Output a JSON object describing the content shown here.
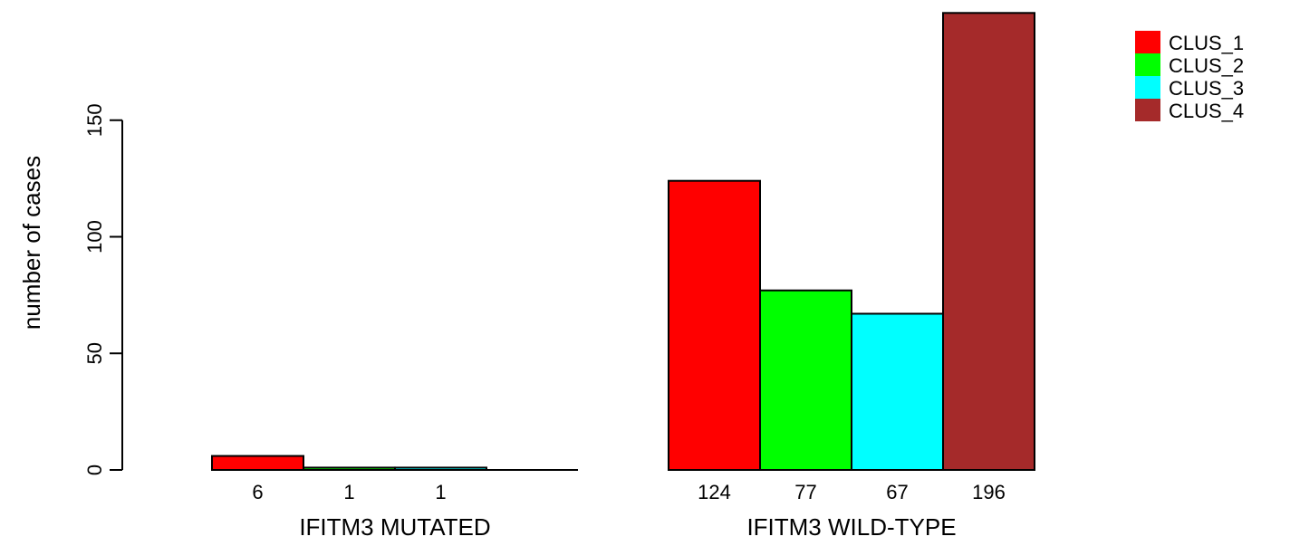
{
  "chart_data": {
    "type": "bar",
    "ylabel": "number of cases",
    "ylim": [
      0,
      200
    ],
    "yticks": [
      0,
      50,
      100,
      150
    ],
    "grid": false,
    "legend_position": "top-right",
    "groups": [
      {
        "label": "IFITM3 MUTATED",
        "bars": [
          {
            "series": "CLUS_1",
            "value": 6,
            "label": "6"
          },
          {
            "series": "CLUS_2",
            "value": 1,
            "label": "1"
          },
          {
            "series": "CLUS_3",
            "value": 1,
            "label": "1"
          },
          {
            "series": "CLUS_4",
            "value": 0,
            "label": ""
          }
        ]
      },
      {
        "label": "IFITM3 WILD-TYPE",
        "bars": [
          {
            "series": "CLUS_1",
            "value": 124,
            "label": "124"
          },
          {
            "series": "CLUS_2",
            "value": 77,
            "label": "77"
          },
          {
            "series": "CLUS_3",
            "value": 67,
            "label": "67"
          },
          {
            "series": "CLUS_4",
            "value": 196,
            "label": "196"
          }
        ]
      }
    ],
    "series": [
      {
        "name": "CLUS_1",
        "color": "#ff0000"
      },
      {
        "name": "CLUS_2",
        "color": "#00ff00"
      },
      {
        "name": "CLUS_3",
        "color": "#00ffff"
      },
      {
        "name": "CLUS_4",
        "color": "#a52a2a"
      }
    ]
  }
}
